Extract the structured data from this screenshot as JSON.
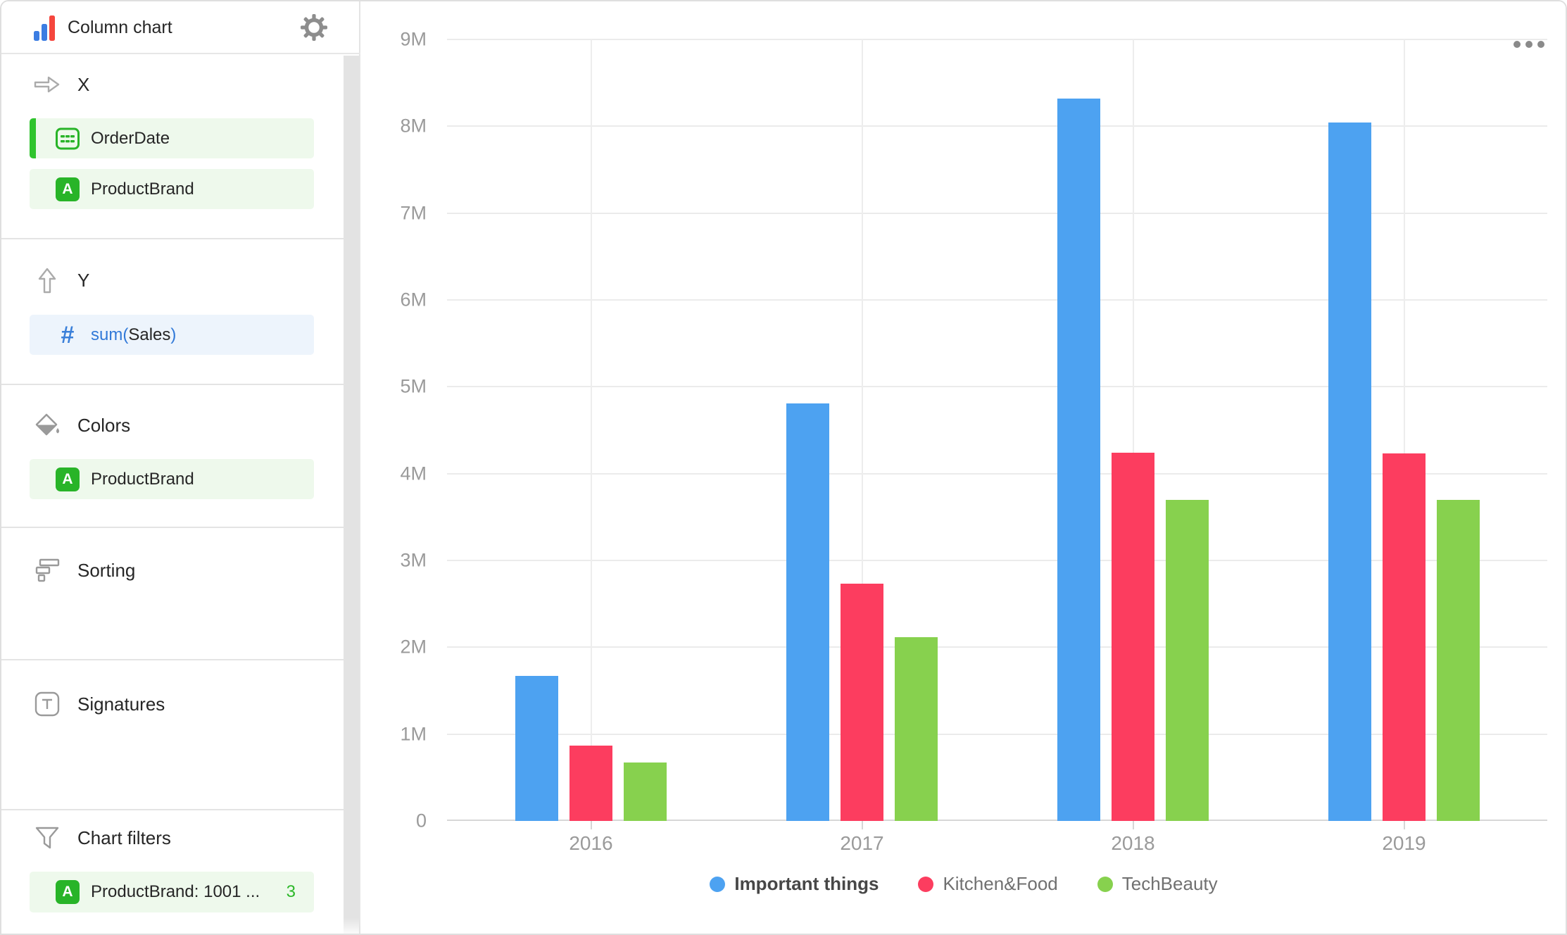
{
  "header": {
    "title": "Column chart"
  },
  "sidebar": {
    "sections": {
      "x": {
        "label": "X",
        "items": [
          {
            "label": "OrderDate"
          },
          {
            "label": "ProductBrand"
          }
        ]
      },
      "y": {
        "label": "Y",
        "items": [
          {
            "prefix": "sum(",
            "field": "Sales",
            "suffix": ")"
          }
        ]
      },
      "colors": {
        "label": "Colors",
        "items": [
          {
            "label": "ProductBrand"
          }
        ]
      },
      "sorting": {
        "label": "Sorting"
      },
      "signatures": {
        "label": "Signatures"
      },
      "filters": {
        "label": "Chart filters",
        "items": [
          {
            "label": "ProductBrand: 1001 ...",
            "badge": "3"
          }
        ]
      }
    }
  },
  "icons": {
    "app": "bar-chart-icon",
    "settings": "gear-icon",
    "x_section": "arrow-right-icon",
    "y_section": "arrow-up-icon",
    "date_field": "calendar-icon",
    "string_field": "letter-a-icon",
    "measure_field": "hash-icon",
    "colors_section": "paint-bucket-icon",
    "sorting_section": "sort-bars-icon",
    "signatures_section": "text-in-box-icon",
    "filters_section": "funnel-icon",
    "chart_menu": "ellipsis-icon"
  },
  "colors": {
    "accent_green": "#2DB82A",
    "accent_green_bright": "#2FC42D",
    "accent_blue": "#3A7FD9",
    "item_bg_green": "#EEF9EC",
    "item_bg_blue": "#EDF4FC",
    "series_blue": "#4DA2F1",
    "series_red": "#FC3D5F",
    "series_green": "#87D14E",
    "gridline": "#EBEBEB",
    "axis_text": "#9A9A9A"
  },
  "chart_data": {
    "type": "bar",
    "title": "",
    "categories": [
      "2016",
      "2017",
      "2018",
      "2019"
    ],
    "series": [
      {
        "name": "Important things",
        "color": "#4DA2F1",
        "emphasized_in_legend": true,
        "values": [
          1.67,
          4.81,
          8.32,
          8.04
        ]
      },
      {
        "name": "Kitchen&Food",
        "color": "#FC3D5F",
        "emphasized_in_legend": false,
        "values": [
          0.87,
          2.73,
          4.24,
          4.23
        ]
      },
      {
        "name": "TechBeauty",
        "color": "#87D14E",
        "emphasized_in_legend": false,
        "values": [
          0.67,
          2.12,
          3.7,
          3.7
        ]
      }
    ],
    "value_unit": "M",
    "xlabel": "",
    "ylabel": "",
    "ylim": [
      0,
      9
    ],
    "y_ticks": [
      "0",
      "1M",
      "2M",
      "3M",
      "4M",
      "5M",
      "6M",
      "7M",
      "8M",
      "9M"
    ],
    "grid": true,
    "legend_position": "bottom"
  }
}
